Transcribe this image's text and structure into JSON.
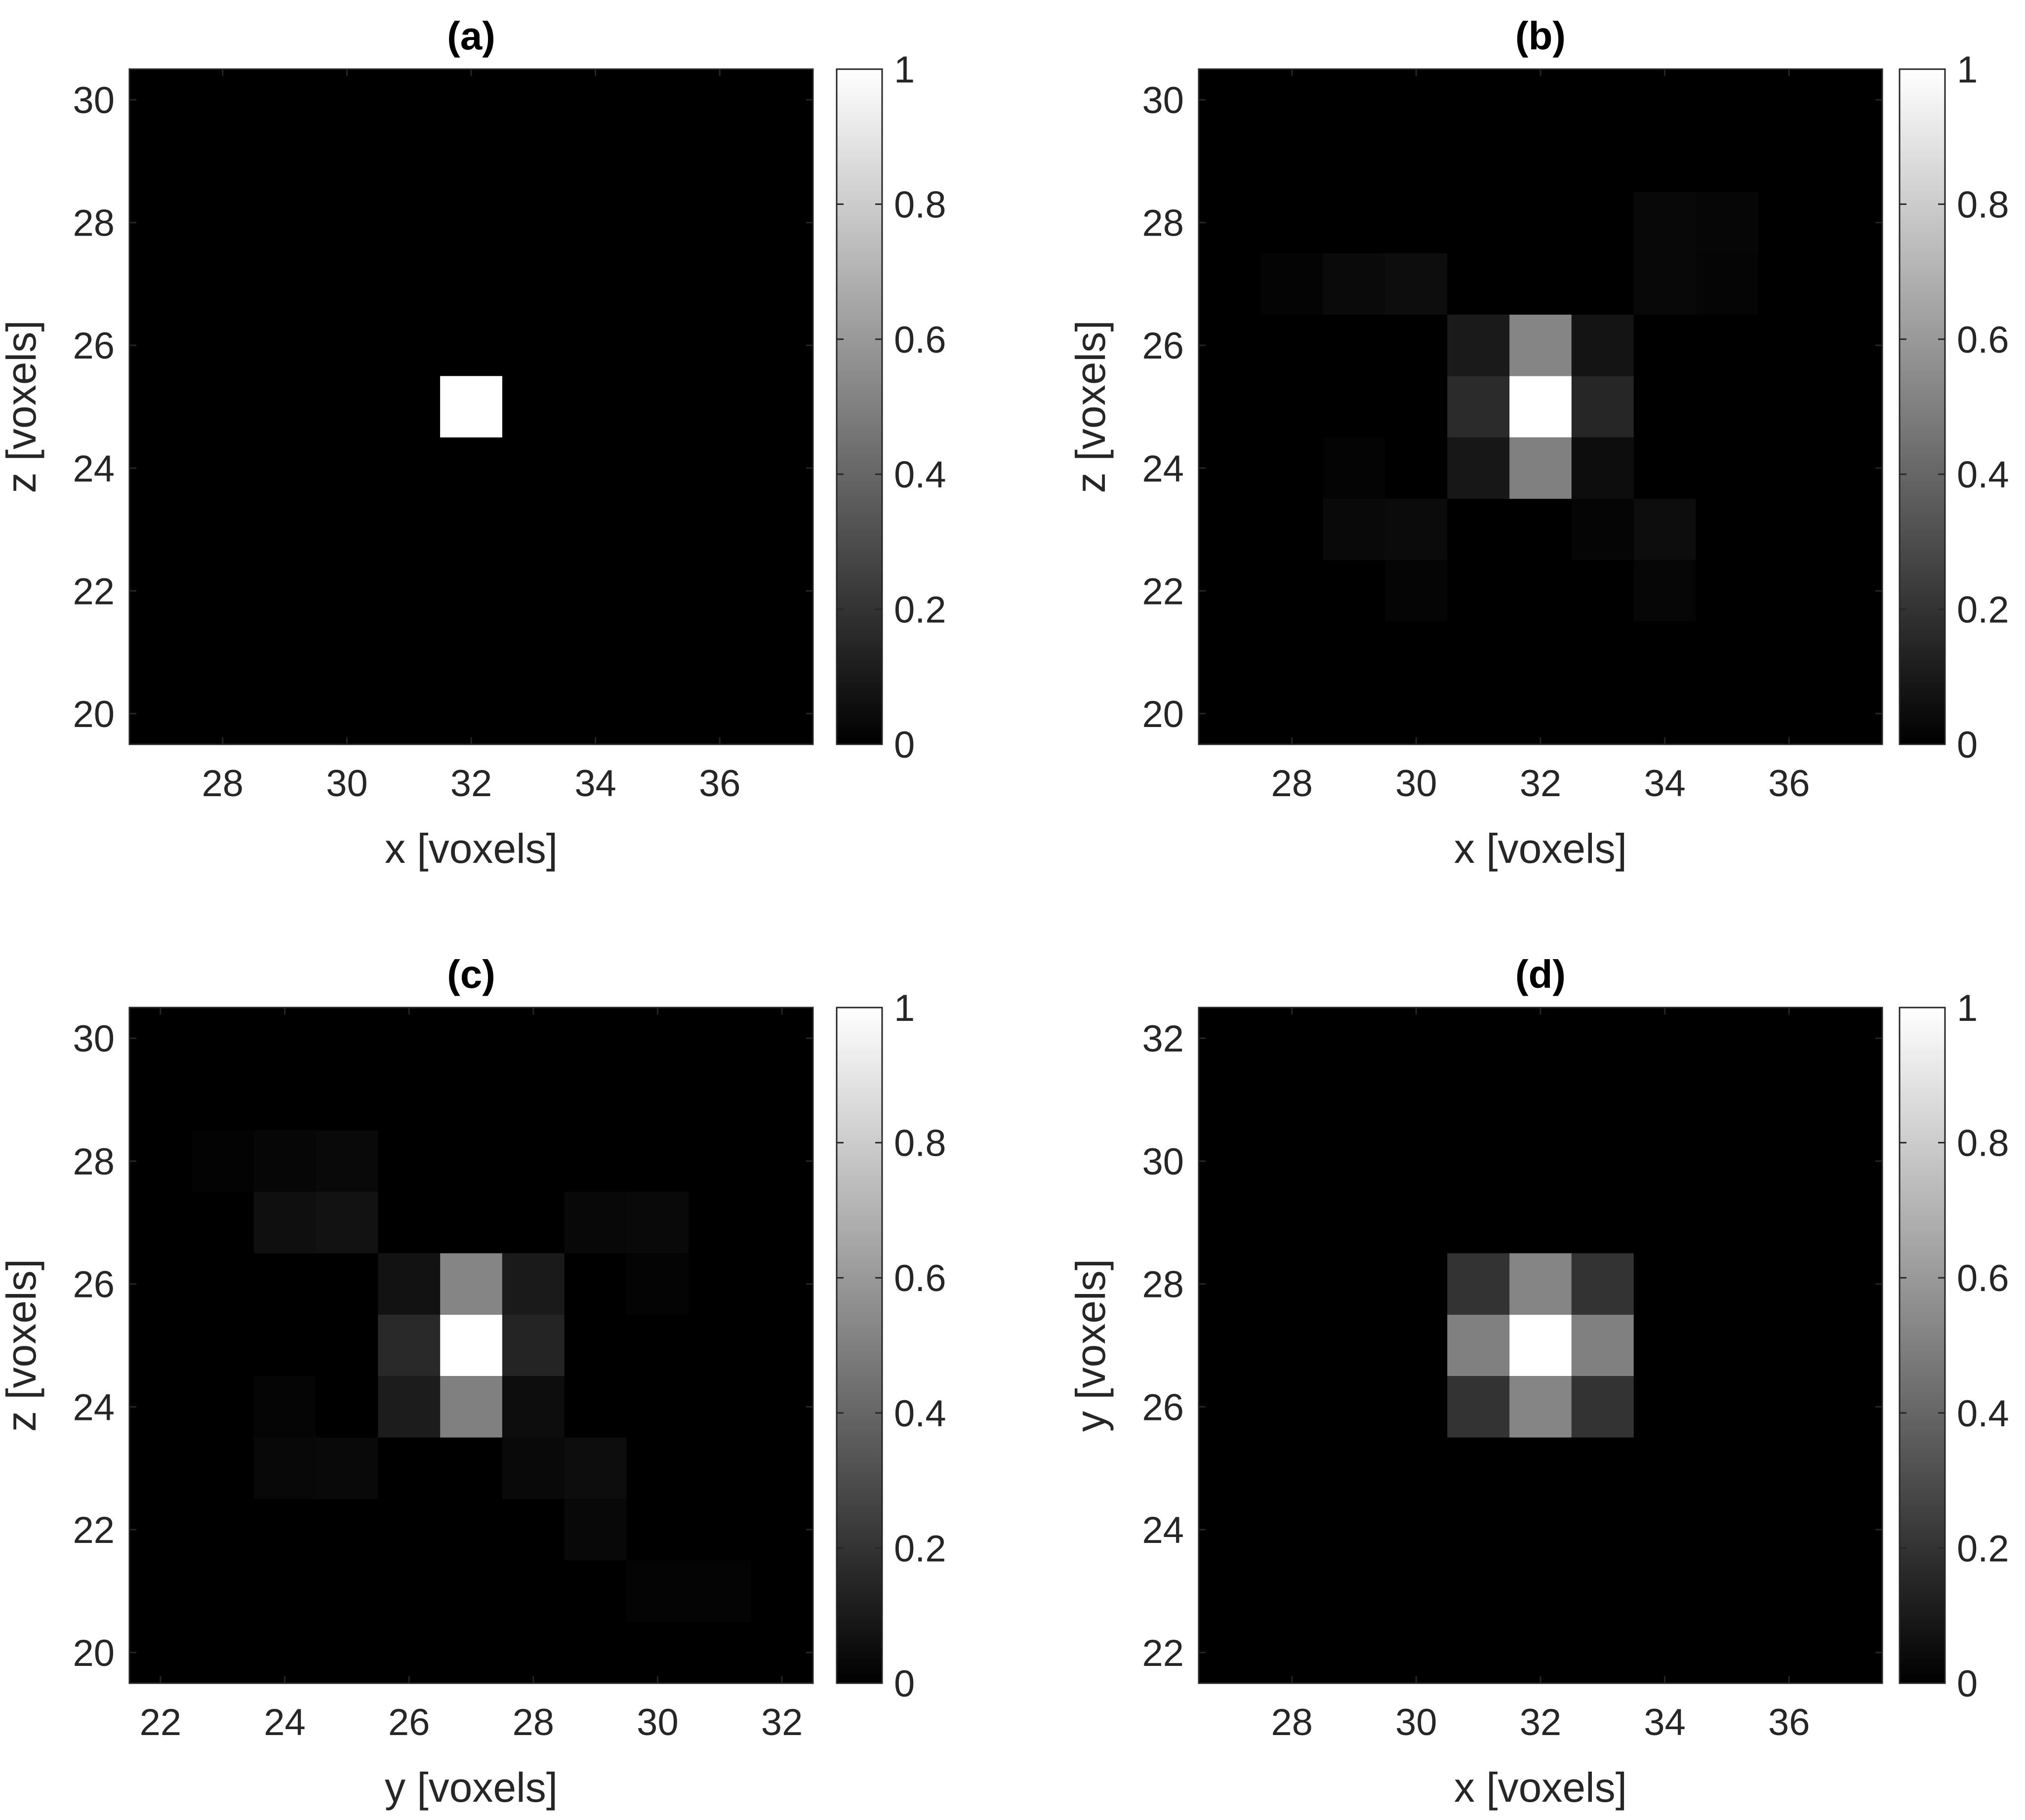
{
  "chart_data": [
    {
      "type": "heatmap",
      "title": "(a)",
      "xlabel": "x [voxels]",
      "ylabel": "z [voxels]",
      "xlim": [
        26.5,
        37.5
      ],
      "ylim": [
        19.5,
        30.5
      ],
      "xticks": [
        28,
        30,
        32,
        34,
        36
      ],
      "yticks": [
        20,
        22,
        24,
        26,
        28,
        30
      ],
      "colormap": "gray",
      "clim": [
        0,
        1
      ],
      "colorbar_ticks": [
        0,
        0.2,
        0.4,
        0.6,
        0.8,
        1
      ],
      "colorbar_tick_labels": [
        "0",
        "0.2",
        "0.4",
        "0.6",
        "0.8",
        "1"
      ],
      "cells": [
        {
          "x": 32,
          "y": 25,
          "v": 1.0
        }
      ]
    },
    {
      "type": "heatmap",
      "title": "(b)",
      "xlabel": "x [voxels]",
      "ylabel": "z [voxels]",
      "xlim": [
        26.5,
        37.5
      ],
      "ylim": [
        19.5,
        30.5
      ],
      "xticks": [
        28,
        30,
        32,
        34,
        36
      ],
      "yticks": [
        20,
        22,
        24,
        26,
        28,
        30
      ],
      "colormap": "gray",
      "clim": [
        0,
        1
      ],
      "colorbar_ticks": [
        0,
        0.2,
        0.4,
        0.6,
        0.8,
        1
      ],
      "colorbar_tick_labels": [
        "0",
        "0.2",
        "0.4",
        "0.6",
        "0.8",
        "1"
      ],
      "cells": [
        {
          "x": 32,
          "y": 25,
          "v": 1.0
        },
        {
          "x": 32,
          "y": 26,
          "v": 0.52
        },
        {
          "x": 32,
          "y": 24,
          "v": 0.5
        },
        {
          "x": 31,
          "y": 25,
          "v": 0.17
        },
        {
          "x": 33,
          "y": 25,
          "v": 0.15
        },
        {
          "x": 31,
          "y": 26,
          "v": 0.1
        },
        {
          "x": 33,
          "y": 26,
          "v": 0.08
        },
        {
          "x": 31,
          "y": 24,
          "v": 0.09
        },
        {
          "x": 33,
          "y": 24,
          "v": 0.05
        },
        {
          "x": 29,
          "y": 27,
          "v": 0.04
        },
        {
          "x": 30,
          "y": 27,
          "v": 0.05
        },
        {
          "x": 28,
          "y": 27,
          "v": 0.015
        },
        {
          "x": 34,
          "y": 27,
          "v": 0.03
        },
        {
          "x": 35,
          "y": 27,
          "v": 0.02
        },
        {
          "x": 34,
          "y": 28,
          "v": 0.03
        },
        {
          "x": 35,
          "y": 28,
          "v": 0.025
        },
        {
          "x": 29,
          "y": 23,
          "v": 0.035
        },
        {
          "x": 30,
          "y": 23,
          "v": 0.045
        },
        {
          "x": 33,
          "y": 23,
          "v": 0.02
        },
        {
          "x": 34,
          "y": 23,
          "v": 0.05
        },
        {
          "x": 34,
          "y": 22,
          "v": 0.025
        },
        {
          "x": 30,
          "y": 22,
          "v": 0.02
        },
        {
          "x": 29,
          "y": 24,
          "v": 0.015
        }
      ]
    },
    {
      "type": "heatmap",
      "title": "(c)",
      "xlabel": "y [voxels]",
      "ylabel": "z [voxels]",
      "xlim": [
        21.5,
        32.5
      ],
      "ylim": [
        19.5,
        30.5
      ],
      "xticks": [
        22,
        24,
        26,
        28,
        30,
        32
      ],
      "yticks": [
        20,
        22,
        24,
        26,
        28,
        30
      ],
      "colormap": "gray",
      "clim": [
        0,
        1
      ],
      "colorbar_ticks": [
        0,
        0.2,
        0.4,
        0.6,
        0.8,
        1
      ],
      "colorbar_tick_labels": [
        "0",
        "0.2",
        "0.4",
        "0.6",
        "0.8",
        "1"
      ],
      "cells": [
        {
          "x": 27,
          "y": 25,
          "v": 1.0
        },
        {
          "x": 27,
          "y": 26,
          "v": 0.52
        },
        {
          "x": 27,
          "y": 24,
          "v": 0.5
        },
        {
          "x": 26,
          "y": 25,
          "v": 0.16
        },
        {
          "x": 28,
          "y": 25,
          "v": 0.14
        },
        {
          "x": 26,
          "y": 26,
          "v": 0.07
        },
        {
          "x": 28,
          "y": 26,
          "v": 0.1
        },
        {
          "x": 26,
          "y": 24,
          "v": 0.11
        },
        {
          "x": 28,
          "y": 24,
          "v": 0.05
        },
        {
          "x": 24,
          "y": 27,
          "v": 0.06
        },
        {
          "x": 25,
          "y": 27,
          "v": 0.07
        },
        {
          "x": 24,
          "y": 28,
          "v": 0.025
        },
        {
          "x": 25,
          "y": 28,
          "v": 0.035
        },
        {
          "x": 23,
          "y": 28,
          "v": 0.012
        },
        {
          "x": 29,
          "y": 27,
          "v": 0.03
        },
        {
          "x": 30,
          "y": 27,
          "v": 0.035
        },
        {
          "x": 30,
          "y": 26,
          "v": 0.015
        },
        {
          "x": 24,
          "y": 23,
          "v": 0.03
        },
        {
          "x": 25,
          "y": 23,
          "v": 0.035
        },
        {
          "x": 24,
          "y": 24,
          "v": 0.02
        },
        {
          "x": 28,
          "y": 23,
          "v": 0.035
        },
        {
          "x": 29,
          "y": 23,
          "v": 0.05
        },
        {
          "x": 29,
          "y": 22,
          "v": 0.03
        },
        {
          "x": 30,
          "y": 21,
          "v": 0.015
        },
        {
          "x": 31,
          "y": 21,
          "v": 0.015
        }
      ]
    },
    {
      "type": "heatmap",
      "title": "(d)",
      "xlabel": "x [voxels]",
      "ylabel": "y [voxels]",
      "xlim": [
        26.5,
        37.5
      ],
      "ylim": [
        21.5,
        32.5
      ],
      "xticks": [
        28,
        30,
        32,
        34,
        36
      ],
      "yticks": [
        22,
        24,
        26,
        28,
        30,
        32
      ],
      "colormap": "gray",
      "clim": [
        0,
        1
      ],
      "colorbar_ticks": [
        0,
        0.2,
        0.4,
        0.6,
        0.8,
        1
      ],
      "colorbar_tick_labels": [
        "0",
        "0.2",
        "0.4",
        "0.6",
        "0.8",
        "1"
      ],
      "cells": [
        {
          "x": 32,
          "y": 27,
          "v": 1.0
        },
        {
          "x": 31,
          "y": 27,
          "v": 0.5
        },
        {
          "x": 33,
          "y": 27,
          "v": 0.5
        },
        {
          "x": 32,
          "y": 28,
          "v": 0.52
        },
        {
          "x": 32,
          "y": 26,
          "v": 0.52
        },
        {
          "x": 31,
          "y": 28,
          "v": 0.2
        },
        {
          "x": 33,
          "y": 28,
          "v": 0.2
        },
        {
          "x": 31,
          "y": 26,
          "v": 0.2
        },
        {
          "x": 33,
          "y": 26,
          "v": 0.2
        }
      ]
    }
  ]
}
